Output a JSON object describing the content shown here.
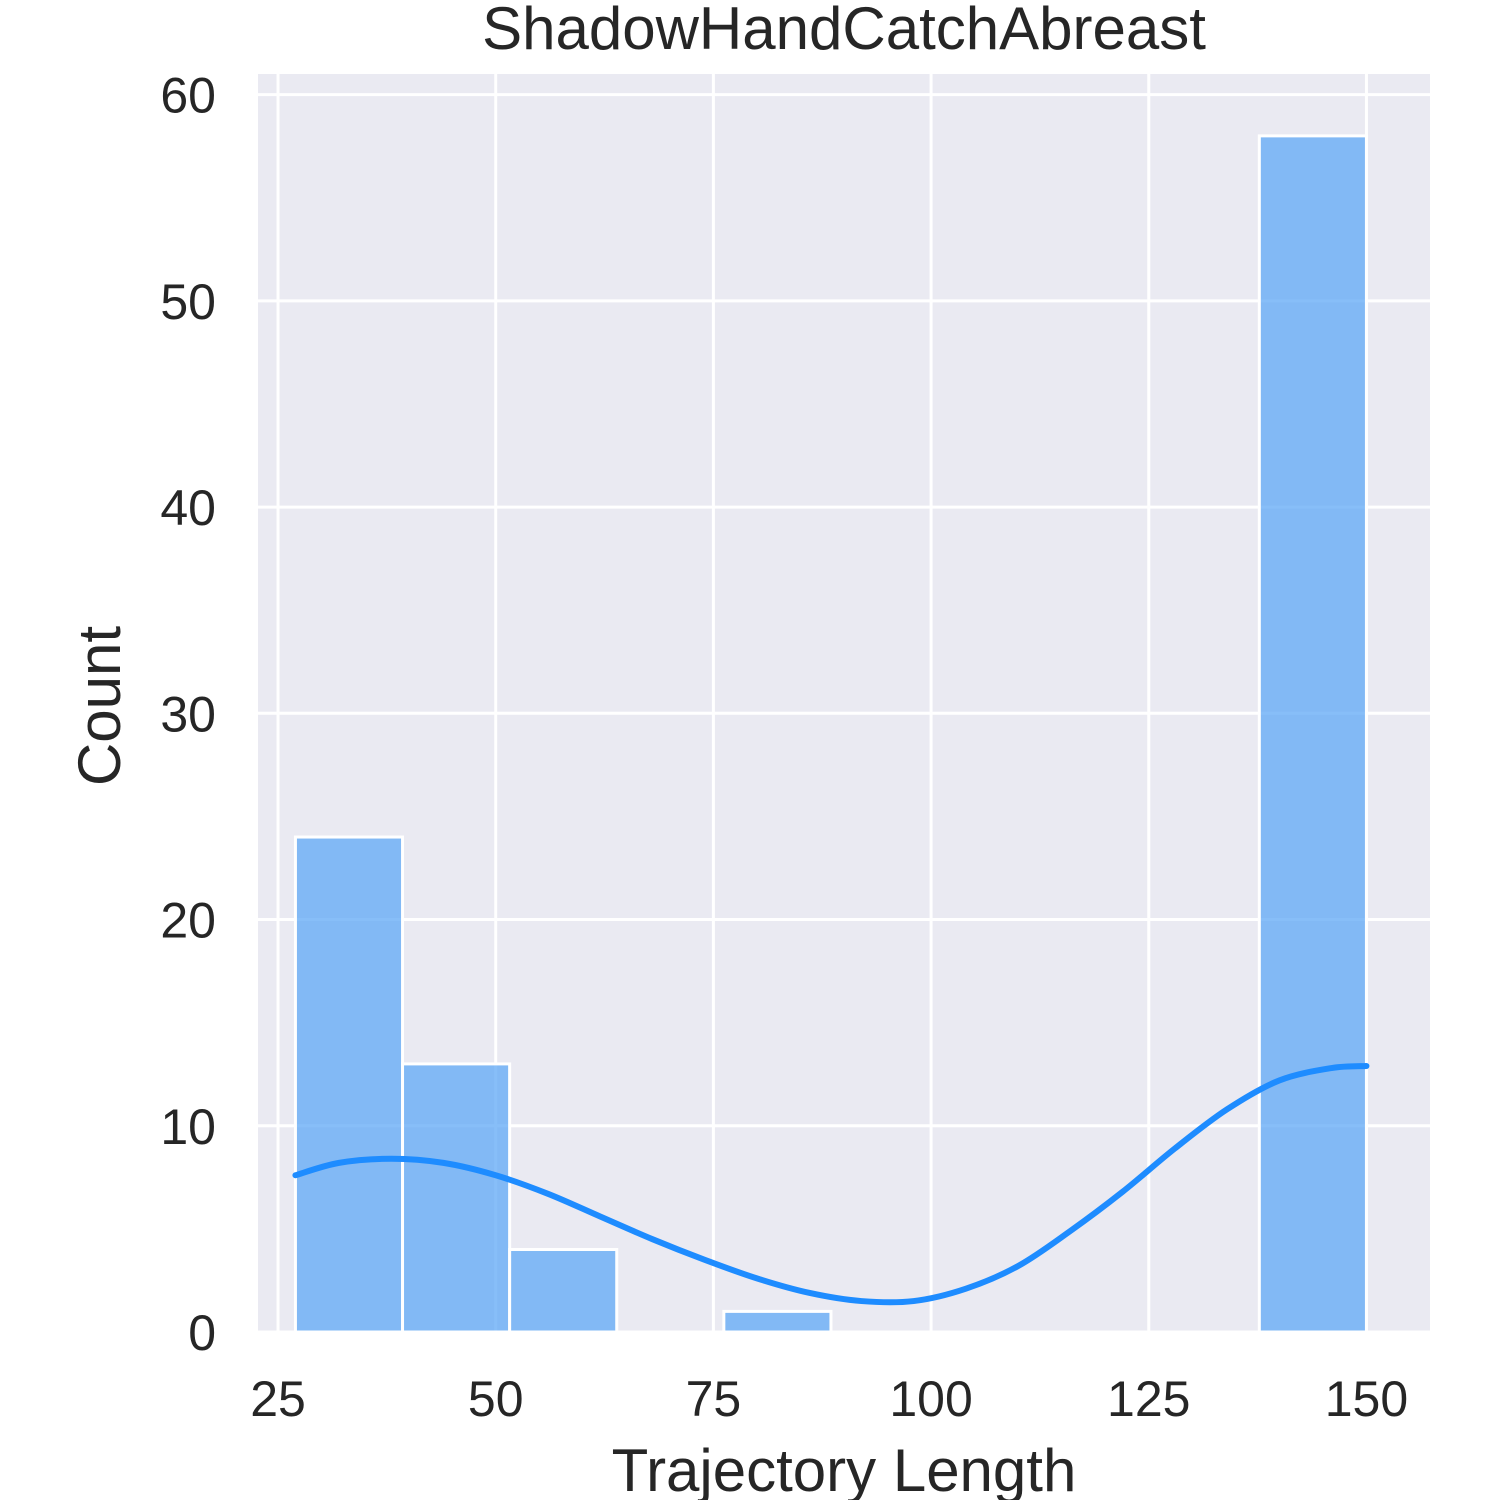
{
  "chart_data": {
    "type": "bar",
    "subtype": "histogram",
    "title": "ShadowHandCatchAbreast",
    "xlabel": "Trajectory Length",
    "ylabel": "Count",
    "xlim": [
      22.7,
      157.3
    ],
    "ylim": [
      0,
      61
    ],
    "xticks": [
      25,
      50,
      75,
      100,
      125,
      150
    ],
    "yticks": [
      0,
      10,
      20,
      30,
      40,
      50,
      60
    ],
    "grid": true,
    "bins": [
      {
        "x0": 27.0,
        "x1": 39.3,
        "count": 24
      },
      {
        "x0": 39.3,
        "x1": 51.6,
        "count": 13
      },
      {
        "x0": 51.6,
        "x1": 63.9,
        "count": 4
      },
      {
        "x0": 63.9,
        "x1": 76.2,
        "count": 0
      },
      {
        "x0": 76.2,
        "x1": 88.5,
        "count": 1
      },
      {
        "x0": 88.5,
        "x1": 100.8,
        "count": 0
      },
      {
        "x0": 100.8,
        "x1": 113.1,
        "count": 0
      },
      {
        "x0": 113.1,
        "x1": 125.4,
        "count": 0
      },
      {
        "x0": 125.4,
        "x1": 137.7,
        "count": 0
      },
      {
        "x0": 137.7,
        "x1": 150.0,
        "count": 58
      }
    ],
    "kde": {
      "x": [
        27,
        32,
        38,
        44,
        50,
        56,
        62,
        68,
        74,
        80,
        86,
        92,
        98,
        104,
        110,
        116,
        122,
        128,
        134,
        140,
        146,
        150
      ],
      "y": [
        7.6,
        8.2,
        8.4,
        8.2,
        7.6,
        6.7,
        5.6,
        4.5,
        3.5,
        2.6,
        1.9,
        1.5,
        1.5,
        2.1,
        3.2,
        4.9,
        6.8,
        8.9,
        10.8,
        12.2,
        12.8,
        12.9
      ]
    },
    "colors": {
      "bar_fill": "#5fa8f5",
      "bar_stroke": "#ffffff",
      "kde_line": "#1e8cff",
      "plot_background": "#eaeaf2",
      "grid": "#ffffff",
      "text": "#262626"
    }
  }
}
